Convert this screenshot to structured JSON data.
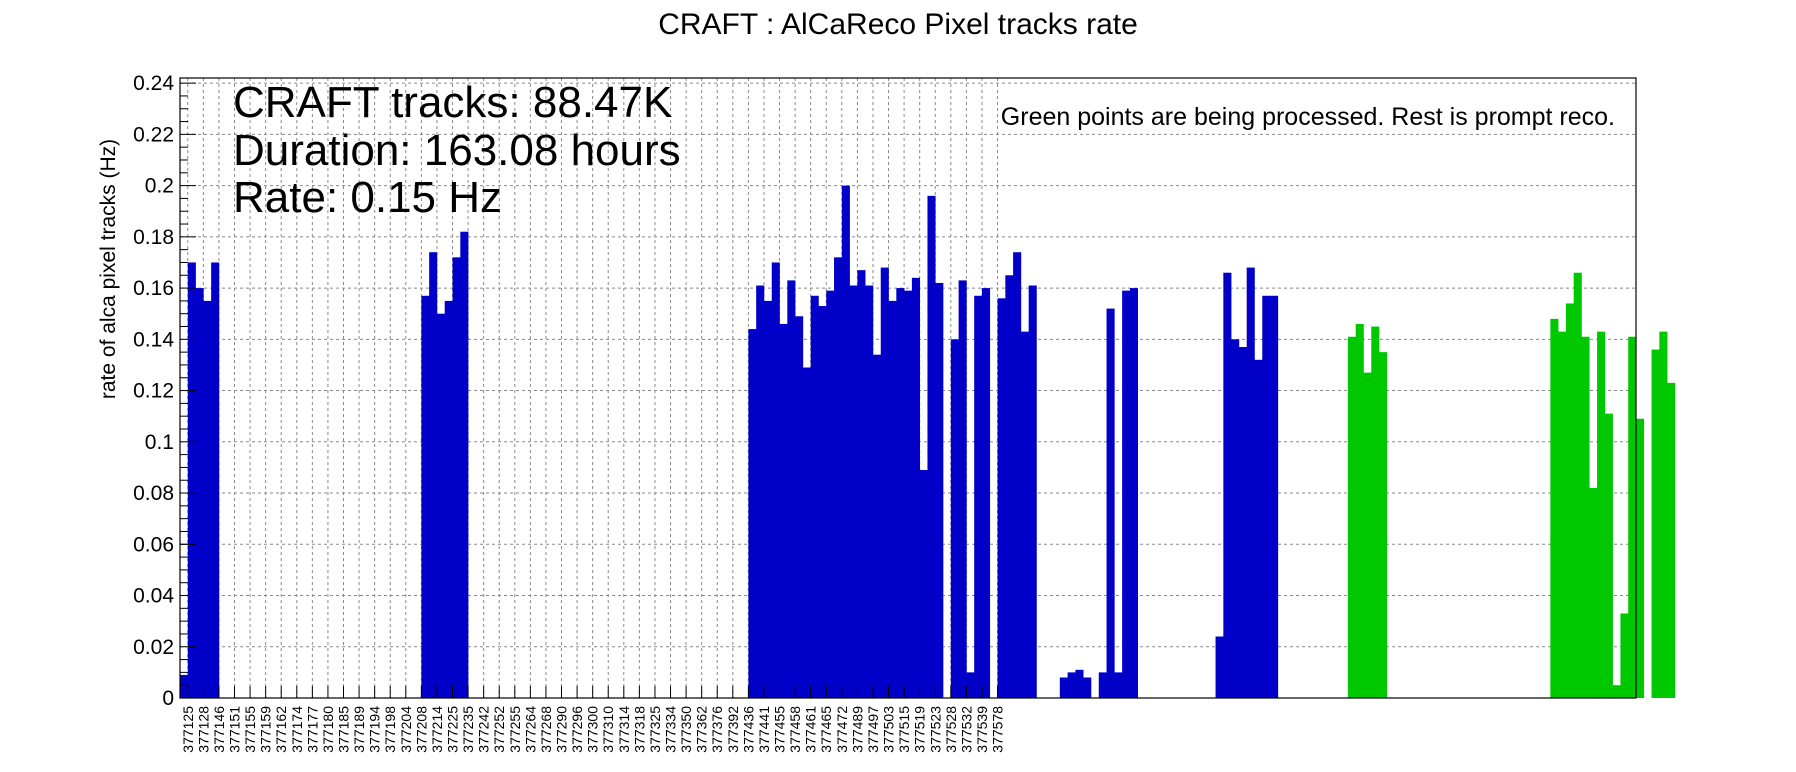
{
  "chart_data": {
    "type": "bar",
    "title": "CRAFT : AlCaReco Pixel tracks rate",
    "xlabel": "",
    "ylabel": "rate of alca pixel tracks (Hz)",
    "ylim": [
      0,
      0.242
    ],
    "yticks": [
      "0",
      "0.02",
      "0.04",
      "0.06",
      "0.08",
      "0.1",
      "0.12",
      "0.14",
      "0.16",
      "0.18",
      "0.2",
      "0.22",
      "0.24"
    ],
    "grid": true,
    "annotations": {
      "tracks": "CRAFT tracks: 88.47K",
      "duration": "Duration: 163.08 hours",
      "rate": "Rate: 0.15 Hz",
      "note": "Green points are being processed. Rest is prompt reco."
    },
    "colors": {
      "prompt": "#0000c8",
      "processing": "#00c800"
    },
    "tick_labels": [
      "377125",
      "377128",
      "377146",
      "377151",
      "377155",
      "377159",
      "377162",
      "377174",
      "377177",
      "377180",
      "377185",
      "377189",
      "377194",
      "377198",
      "377204",
      "377208",
      "377214",
      "377225",
      "377235",
      "377242",
      "377252",
      "377255",
      "377264",
      "377268",
      "377290",
      "377296",
      "377300",
      "377310",
      "377314",
      "377318",
      "377325",
      "377334",
      "377350",
      "377362",
      "377376",
      "377392",
      "377436",
      "377441",
      "377455",
      "377458",
      "377461",
      "377465",
      "377472",
      "377489",
      "377497",
      "377503",
      "377515",
      "377519",
      "377523",
      "377528",
      "377532",
      "377539",
      "377578"
    ],
    "bins_per_tick": 2,
    "series": [
      {
        "name": "prompt reco",
        "color": "#0000c8",
        "values": [
          0.009,
          0.17,
          0.16,
          0.155,
          0.17,
          0,
          0,
          0,
          0,
          0,
          0,
          0,
          0,
          0,
          0,
          0,
          0,
          0,
          0,
          0,
          0,
          0,
          0,
          0,
          0,
          0,
          0,
          0,
          0,
          0,
          0,
          0.157,
          0.174,
          0.15,
          0.155,
          0.172,
          0.182,
          0,
          0,
          0,
          0,
          0,
          0,
          0,
          0,
          0,
          0,
          0,
          0,
          0,
          0,
          0,
          0,
          0,
          0,
          0,
          0,
          0,
          0,
          0,
          0,
          0,
          0,
          0,
          0,
          0,
          0,
          0,
          0,
          0,
          0,
          0,
          0,
          0.144,
          0.161,
          0.155,
          0.17,
          0.146,
          0.163,
          0.149,
          0.129,
          0.157,
          0.153,
          0.159,
          0.172,
          0.2,
          0.161,
          0.167,
          0.161,
          0.134,
          0.168,
          0.155,
          0.16,
          0.159,
          0.164,
          0.089,
          0.196,
          0.162,
          0,
          0.14,
          0.163,
          0.01,
          0.157,
          0.16,
          0,
          0.156,
          0.165,
          0.174,
          0.143,
          0.161,
          0,
          0,
          0,
          0.008,
          0.01,
          0.011,
          0.008,
          0,
          0.01,
          0.152,
          0.01,
          0.159,
          0.16,
          0,
          0,
          0,
          0,
          0,
          0,
          0,
          0,
          0,
          0,
          0.024,
          0.166,
          0.14,
          0.137,
          0.168,
          0.132,
          0.157,
          0.157,
          0,
          0,
          0,
          0,
          0,
          0,
          0,
          0,
          0,
          0,
          0,
          0,
          0,
          0,
          0,
          0,
          0,
          0,
          0,
          0,
          0,
          0,
          0,
          0,
          0,
          0,
          0,
          0,
          0,
          0,
          0,
          0,
          0,
          0,
          0,
          0,
          0,
          0,
          0,
          0,
          0,
          0,
          0,
          0,
          0,
          0
        ]
      },
      {
        "name": "being processed",
        "color": "#00c800",
        "values": [
          0,
          0,
          0,
          0,
          0,
          0,
          0,
          0,
          0,
          0,
          0,
          0,
          0,
          0,
          0,
          0,
          0,
          0,
          0,
          0,
          0,
          0,
          0,
          0,
          0,
          0,
          0,
          0,
          0,
          0,
          0,
          0,
          0,
          0,
          0,
          0,
          0,
          0,
          0,
          0,
          0,
          0,
          0,
          0,
          0,
          0,
          0,
          0,
          0,
          0,
          0,
          0,
          0,
          0,
          0,
          0,
          0,
          0,
          0,
          0,
          0,
          0,
          0,
          0,
          0,
          0,
          0,
          0,
          0,
          0,
          0,
          0,
          0,
          0,
          0,
          0,
          0,
          0,
          0,
          0,
          0,
          0,
          0,
          0,
          0,
          0,
          0,
          0,
          0,
          0,
          0,
          0,
          0,
          0,
          0,
          0,
          0,
          0,
          0,
          0,
          0,
          0,
          0,
          0,
          0,
          0,
          0,
          0,
          0,
          0,
          0,
          0,
          0,
          0,
          0,
          0,
          0,
          0,
          0,
          0,
          0,
          0,
          0,
          0,
          0,
          0,
          0,
          0,
          0,
          0,
          0,
          0,
          0,
          0,
          0,
          0,
          0,
          0,
          0,
          0,
          0,
          0,
          0,
          0,
          0,
          0,
          0,
          0,
          0,
          0,
          0.141,
          0.146,
          0.127,
          0.145,
          0.135,
          0,
          0,
          0,
          0,
          0,
          0,
          0,
          0,
          0,
          0,
          0,
          0,
          0,
          0,
          0,
          0,
          0,
          0,
          0,
          0,
          0,
          0.148,
          0.143,
          0.154,
          0.166,
          0.141,
          0.082,
          0.143,
          0.111,
          0.005,
          0.033,
          0.141,
          0.109,
          0,
          0.136,
          0.143,
          0.123
        ]
      }
    ]
  }
}
